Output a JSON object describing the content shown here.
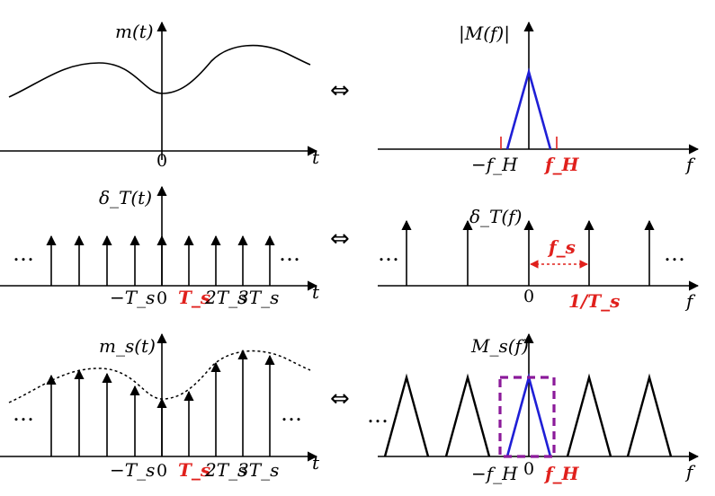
{
  "colors": {
    "black": "#000000",
    "blue": "#1f1fd6",
    "red": "#e0201c",
    "purple": "#8b1a9a"
  },
  "ellipsis": "…",
  "equiv_symbol": "⇔",
  "row1": {
    "time_label": "m(t)",
    "time_axis": "t",
    "time_origin": "0",
    "freq_label": "|M(f)|",
    "freq_axis": "f",
    "freq_neg": "−f_H",
    "freq_pos": "f_H"
  },
  "row2": {
    "time_label": "δ_T(t)",
    "time_axis": "t",
    "ticks": [
      "−T_s",
      "0",
      "T_s",
      "2T_s",
      "3T_s"
    ],
    "freq_label": "δ_T(f)",
    "freq_axis": "f",
    "freq_origin": "0",
    "spacing_label": "f_s",
    "spacing_value": "1/T_s"
  },
  "row3": {
    "time_label": "m_s(t)",
    "time_axis": "t",
    "ticks": [
      "−T_s",
      "0",
      "T_s",
      "2T_s",
      "3T_s"
    ],
    "freq_label": "M_s(f)",
    "freq_axis": "f",
    "freq_neg": "−f_H",
    "freq_origin": "0",
    "freq_pos": "f_H"
  }
}
